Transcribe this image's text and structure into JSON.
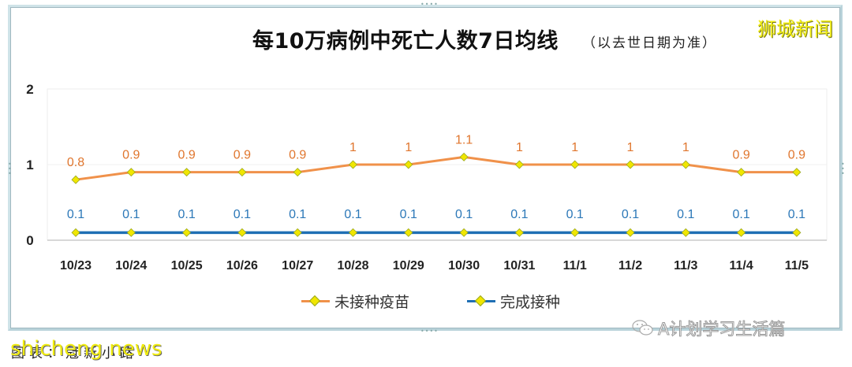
{
  "brand": "狮城新闻",
  "title": "每10万病例中死亡人数7日均线",
  "subtitle": "（以去世日期为准）",
  "legend": {
    "unvaccinated": "未接种疫苗",
    "vaccinated": "完成接种"
  },
  "watermark": "A计划学习生活篇",
  "source_text": "图表：冠新小路",
  "source_watermark": "shicheng news",
  "colors": {
    "unvaccinated": "#f0914a",
    "vaccinated": "#1f6fb4",
    "marker": "#f0e600",
    "label_unvaccinated": "#e0762e",
    "label_vaccinated": "#2c78b8"
  },
  "chart_data": {
    "type": "line",
    "title": "每10万病例中死亡人数7日均线（以去世日期为准）",
    "xlabel": "",
    "ylabel": "",
    "categories": [
      "10/23",
      "10/24",
      "10/25",
      "10/26",
      "10/27",
      "10/28",
      "10/29",
      "10/30",
      "10/31",
      "11/1",
      "11/2",
      "11/3",
      "11/4",
      "11/5"
    ],
    "series": [
      {
        "name": "未接种疫苗",
        "values": [
          0.8,
          0.9,
          0.9,
          0.9,
          0.9,
          1,
          1,
          1.1,
          1,
          1,
          1,
          1,
          0.9,
          0.9
        ]
      },
      {
        "name": "完成接种",
        "values": [
          0.1,
          0.1,
          0.1,
          0.1,
          0.1,
          0.1,
          0.1,
          0.1,
          0.1,
          0.1,
          0.1,
          0.1,
          0.1,
          0.1
        ]
      }
    ],
    "yticks": [
      "0",
      "1",
      "2"
    ],
    "ylim": [
      0,
      2
    ],
    "grid": true,
    "legend_position": "bottom",
    "data_labels": true
  }
}
